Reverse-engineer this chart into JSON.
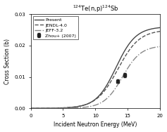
{
  "title": "$^{124}$Te(n,p)$^{124}$Sb",
  "xlabel": "Incident Neutron Energy (MeV)",
  "ylabel": "Cross Section (b)",
  "xlim": [
    0,
    20
  ],
  "ylim": [
    0.0,
    0.03
  ],
  "yticks": [
    0.0,
    0.01,
    0.02,
    0.03
  ],
  "xticks": [
    0,
    5,
    10,
    15,
    20
  ],
  "present_color": "#444444",
  "jendl_color": "#555555",
  "jeff_color": "#888888",
  "zhou_color": "#222222",
  "data_points": {
    "x": [
      13.5,
      14.6
    ],
    "y": [
      0.0086,
      0.0105
    ],
    "yerr": [
      0.0006,
      0.0007
    ]
  },
  "legend_entries": [
    "Present",
    "JENDL-4.0",
    "JEFF-3.2",
    "Zhou+ (2007)"
  ]
}
